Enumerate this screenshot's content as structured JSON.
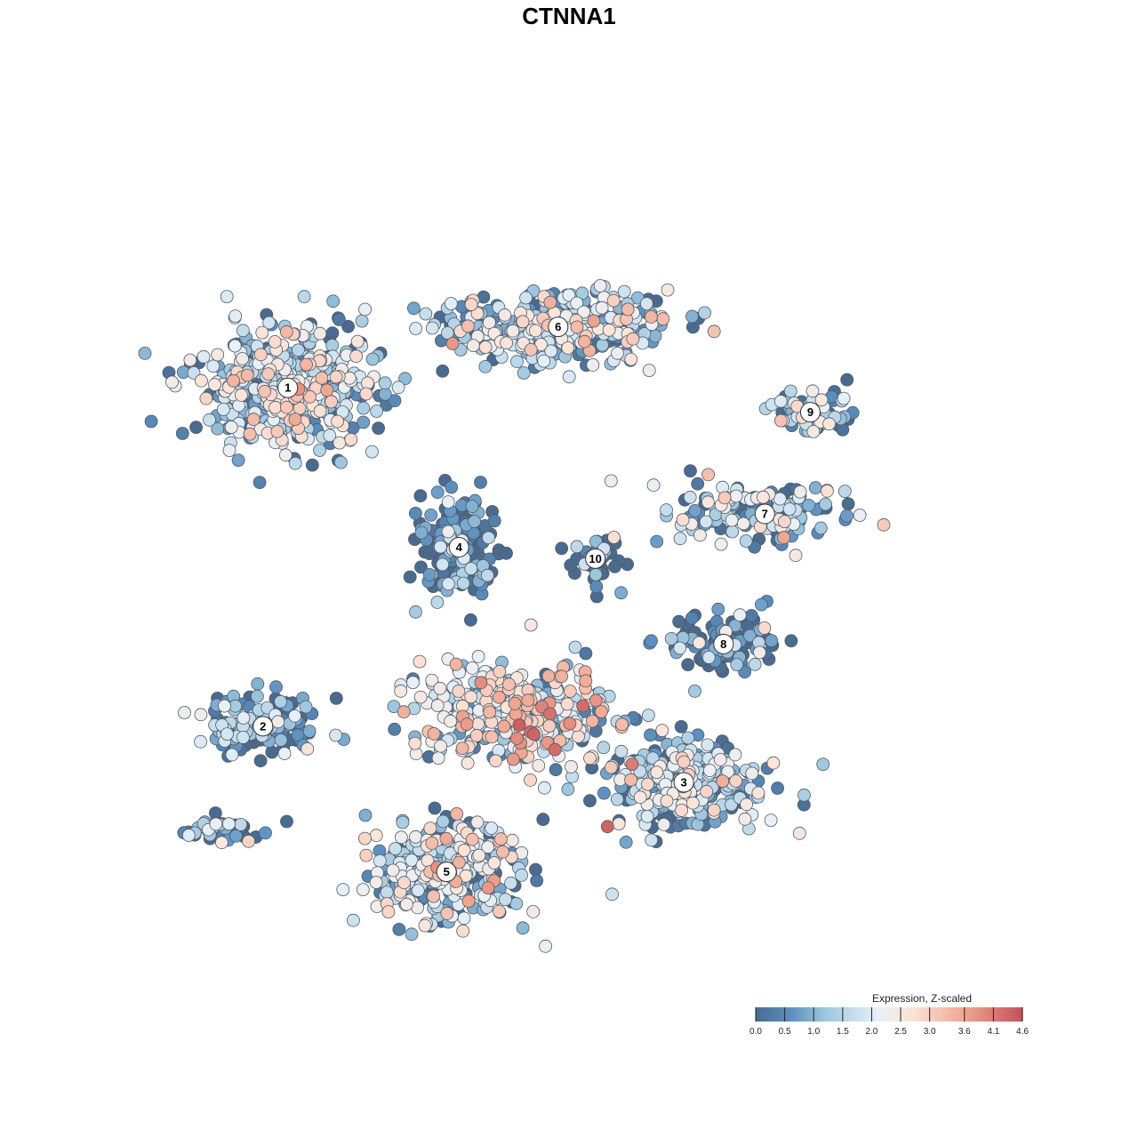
{
  "chart_data": {
    "type": "scatter",
    "title": "CTNNA1",
    "legend": {
      "title": "Expression, Z-scaled",
      "placement": "bottom-right",
      "ticks": [
        "0.0",
        "0.5",
        "1.0",
        "1.5",
        "2.0",
        "2.5",
        "3.0",
        "3.6",
        "4.1",
        "4.6"
      ],
      "tick_values": [
        0.0,
        0.5,
        1.0,
        1.5,
        2.0,
        2.5,
        3.0,
        3.6,
        4.1,
        4.6
      ],
      "range": [
        0.0,
        4.6
      ]
    },
    "color_scale": [
      {
        "value": 0.0,
        "color": "#4a6b8f"
      },
      {
        "value": 0.6,
        "color": "#5b8fbf"
      },
      {
        "value": 1.2,
        "color": "#9ec6df"
      },
      {
        "value": 2.1,
        "color": "#e8f1f8"
      },
      {
        "value": 2.7,
        "color": "#fbe4d8"
      },
      {
        "value": 3.6,
        "color": "#f0a690"
      },
      {
        "value": 4.6,
        "color": "#c65058"
      }
    ],
    "xlim": [
      0,
      100
    ],
    "ylim": [
      0,
      100
    ],
    "grid": false,
    "clusters": [
      {
        "id": "1",
        "x": 13.3,
        "y": 72.0,
        "sx": 10.0,
        "sy": 6.5,
        "n": 520,
        "mean": 1.9
      },
      {
        "id": "2",
        "x": 10.3,
        "y": 30.4,
        "sx": 6.5,
        "sy": 3.6,
        "n": 160,
        "mean": 1.0
      },
      {
        "id": "3",
        "x": 61.2,
        "y": 23.5,
        "sx": 8.0,
        "sy": 5.0,
        "n": 300,
        "mean": 1.7
      },
      {
        "id": "4",
        "x": 34.0,
        "y": 52.4,
        "sx": 4.2,
        "sy": 5.2,
        "n": 200,
        "mean": 0.6
      },
      {
        "id": "5",
        "x": 32.5,
        "y": 12.5,
        "sx": 8.5,
        "sy": 5.5,
        "n": 330,
        "mean": 1.8
      },
      {
        "id": "6",
        "x": 46.0,
        "y": 79.5,
        "sx": 12.0,
        "sy": 3.8,
        "n": 380,
        "mean": 1.8
      },
      {
        "id": "7",
        "x": 71.0,
        "y": 56.5,
        "sx": 10.0,
        "sy": 3.5,
        "n": 150,
        "mean": 1.7
      },
      {
        "id": "8",
        "x": 66.0,
        "y": 40.5,
        "sx": 6.0,
        "sy": 3.5,
        "n": 110,
        "mean": 0.6
      },
      {
        "id": "9",
        "x": 76.5,
        "y": 69.0,
        "sx": 4.0,
        "sy": 2.5,
        "n": 70,
        "mean": 1.3
      },
      {
        "id": "10",
        "x": 50.5,
        "y": 51.0,
        "sx": 2.5,
        "sy": 3.0,
        "n": 50,
        "mean": 0.6
      },
      {
        "id": "core",
        "x": 40.5,
        "y": 32.0,
        "sx": 11.0,
        "sy": 5.5,
        "n": 360,
        "mean": 2.5
      },
      {
        "id": "small",
        "x": 5.0,
        "y": 17.5,
        "sx": 4.5,
        "sy": 1.8,
        "n": 40,
        "mean": 1.4
      }
    ]
  }
}
